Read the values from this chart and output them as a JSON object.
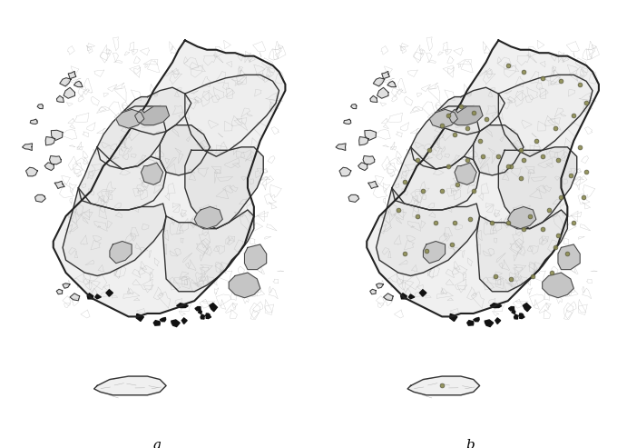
{
  "title_a": "a",
  "title_b": "b",
  "background_color": "#ffffff",
  "fig_width": 6.91,
  "fig_height": 4.93,
  "label_fontsize": 11
}
